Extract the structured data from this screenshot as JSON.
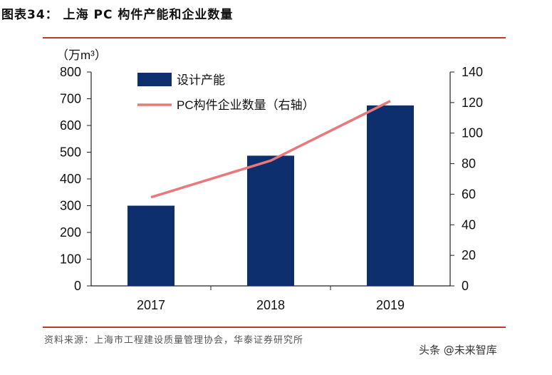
{
  "figure_title": "图表34：  上海 PC 构件产能和企业数量",
  "source_note": "资料来源：上海市工程建设质量管理协会，华泰证券研究所",
  "watermark": "头条 @未来智库",
  "chart_data": {
    "type": "bar",
    "categories": [
      "2017",
      "2018",
      "2019"
    ],
    "series": [
      {
        "name": "设计产能",
        "type": "bar",
        "axis": "left",
        "values": [
          300,
          487,
          675
        ],
        "color": "#0d2f6e"
      },
      {
        "name": "PC构件企业数量（右轴）",
        "type": "line",
        "axis": "right",
        "values": [
          58,
          82,
          121
        ],
        "color": "#e8787a"
      }
    ],
    "y_left": {
      "label": "（万m³）",
      "ticks": [
        0,
        100,
        200,
        300,
        400,
        500,
        600,
        700,
        800
      ],
      "range": [
        0,
        800
      ]
    },
    "y_right": {
      "ticks": [
        0,
        20,
        40,
        60,
        80,
        100,
        120,
        140
      ],
      "range": [
        0,
        140
      ]
    },
    "legend_position": "top-left"
  }
}
